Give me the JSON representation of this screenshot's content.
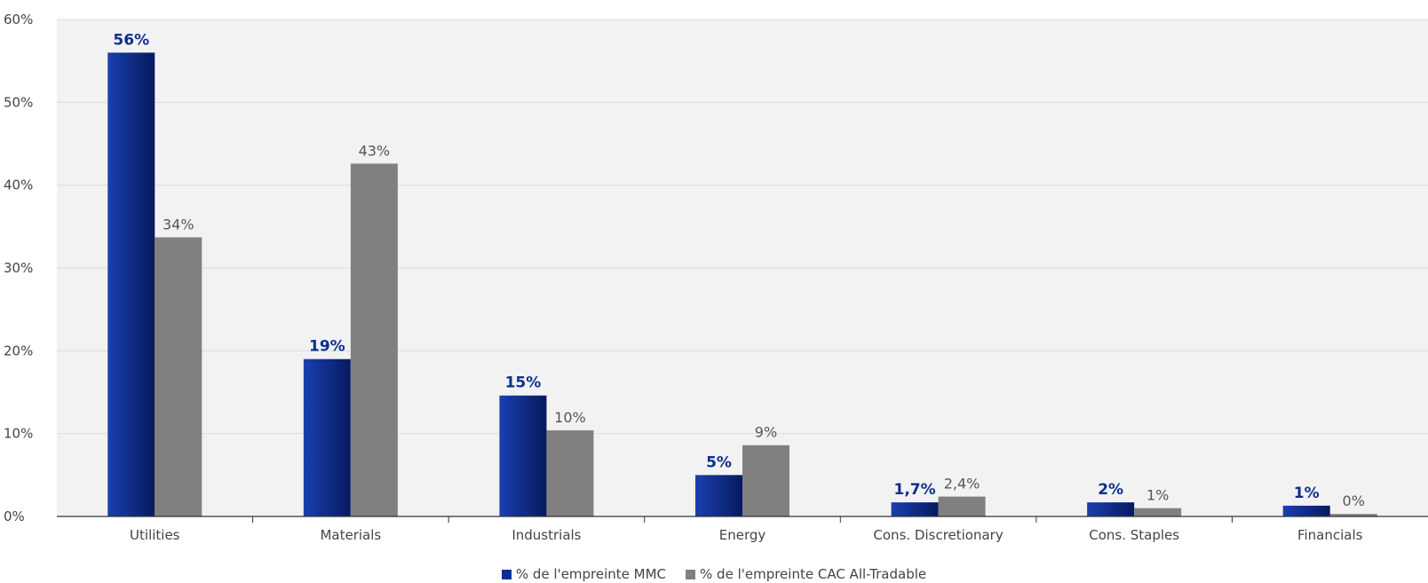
{
  "chart_data": {
    "type": "bar",
    "categories": [
      "Utilities",
      "Materials",
      "Industrials",
      "Energy",
      "Cons. Discretionary",
      "Cons. Staples",
      "Financials"
    ],
    "series": [
      {
        "name": "% de l'empreinte MMC",
        "values": [
          56,
          19,
          14.6,
          5,
          1.7,
          1.7,
          1.3
        ],
        "labels": [
          "56%",
          "19%",
          "15%",
          "5%",
          "1,7%",
          "2%",
          "1%"
        ],
        "color": "#0b2f8f"
      },
      {
        "name": "% de l'empreinte CAC All-Tradable",
        "values": [
          33.7,
          42.6,
          10.4,
          8.6,
          2.4,
          1.0,
          0.3
        ],
        "labels": [
          "34%",
          "43%",
          "10%",
          "9%",
          "2,4%",
          "1%",
          "0%"
        ],
        "color": "#808080"
      }
    ],
    "y_ticks": [
      "0%",
      "10%",
      "20%",
      "30%",
      "40%",
      "50%",
      "60%"
    ],
    "ylim": [
      0,
      60
    ],
    "grid": true,
    "legend": "bottom-center",
    "title": "",
    "xlabel": "",
    "ylabel": ""
  }
}
